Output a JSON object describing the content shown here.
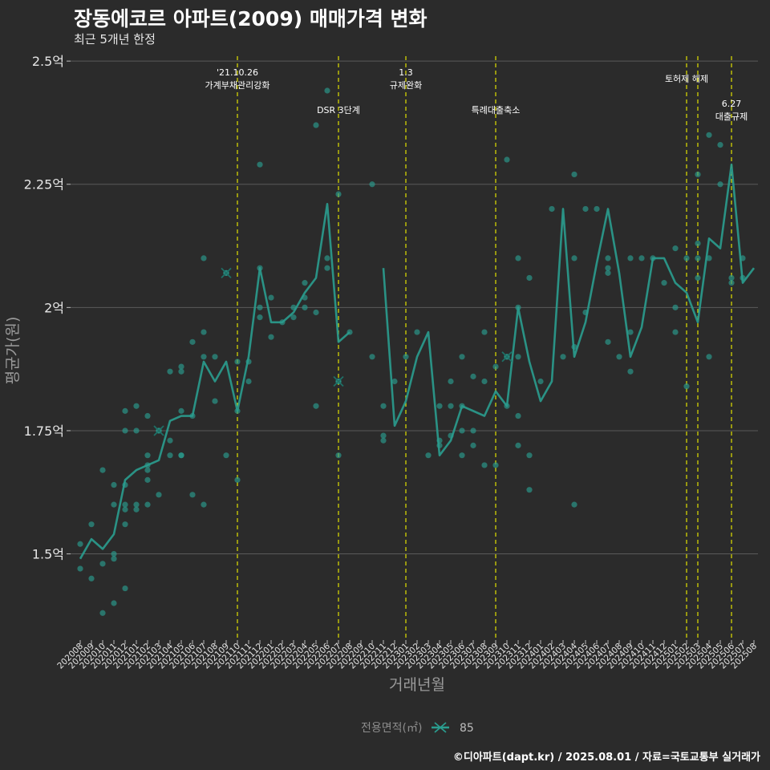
{
  "header": {
    "title": "장동에코르 아파트(2009) 매매가격 변화",
    "subtitle": "최근 5개년 한정"
  },
  "caption": "©디아파트(dapt.kr) / 2025.08.01 / 자료=국토교통부 실거래가",
  "colors": {
    "background": "#2b2b2b",
    "line": "#2a9d8f",
    "point": "#2a9d8f",
    "event_line": "#e0e000",
    "grid": "#5a5a5a"
  },
  "chart_data": {
    "type": "line",
    "xlabel": "거래년월",
    "ylabel": "평균가(원)",
    "ylim": [
      1.33,
      2.51
    ],
    "y_unit_suffix": "억",
    "y_ticks": [
      1.5,
      1.75,
      2,
      2.25,
      2.5
    ],
    "y_tick_labels": [
      "1.5억",
      "1.75억",
      "2억",
      "2.25억",
      "2.5억"
    ],
    "grid": true,
    "legend": {
      "title": "전용면적(㎡)",
      "placement": "bottom",
      "entries": [
        "85"
      ]
    },
    "x_tick_labels": [
      "202008",
      "202009",
      "202010",
      "202011",
      "202012",
      "202101",
      "202102",
      "202103",
      "202104",
      "202105",
      "202106",
      "202107",
      "202108",
      "202109",
      "202110",
      "202111",
      "202112",
      "202201",
      "202202",
      "202203",
      "202204",
      "202205",
      "202206",
      "202207",
      "202208",
      "202209",
      "202210",
      "202211",
      "202212",
      "202301",
      "202302",
      "202303",
      "202304",
      "202305",
      "202306",
      "202307",
      "202308",
      "202309",
      "202310",
      "202311",
      "202312",
      "202401",
      "202402",
      "202403",
      "202404",
      "202405",
      "202406",
      "202407",
      "202408",
      "202409",
      "202410",
      "202411",
      "202412",
      "202501",
      "202502",
      "202503",
      "202504",
      "202505",
      "202506",
      "202507",
      "202508"
    ],
    "series": [
      {
        "name": "85",
        "values": [
          1.49,
          1.53,
          1.51,
          1.54,
          1.65,
          1.67,
          1.68,
          1.69,
          1.77,
          1.78,
          1.78,
          1.89,
          1.85,
          1.89,
          1.79,
          1.9,
          2.08,
          1.97,
          1.97,
          1.99,
          2.03,
          2.06,
          2.21,
          1.93,
          1.95,
          null,
          null,
          2.08,
          1.76,
          1.81,
          1.9,
          1.95,
          1.7,
          1.73,
          1.8,
          1.79,
          1.78,
          1.83,
          1.8,
          2.0,
          1.89,
          1.81,
          1.85,
          2.2,
          1.9,
          1.97,
          2.09,
          2.2,
          2.07,
          1.9,
          1.96,
          2.1,
          2.1,
          2.05,
          2.03,
          1.97,
          2.14,
          2.12,
          2.29,
          2.05,
          2.08
        ]
      }
    ],
    "scatter": [
      [
        0,
        1.47
      ],
      [
        0,
        1.52
      ],
      [
        1,
        1.45
      ],
      [
        1,
        1.56
      ],
      [
        2,
        1.38
      ],
      [
        2,
        1.48
      ],
      [
        2,
        1.67
      ],
      [
        3,
        1.4
      ],
      [
        3,
        1.49
      ],
      [
        3,
        1.5
      ],
      [
        3,
        1.6
      ],
      [
        3,
        1.64
      ],
      [
        4,
        1.43
      ],
      [
        4,
        1.56
      ],
      [
        4,
        1.59
      ],
      [
        4,
        1.6
      ],
      [
        4,
        1.64
      ],
      [
        4,
        1.75
      ],
      [
        4,
        1.79
      ],
      [
        5,
        1.59
      ],
      [
        5,
        1.6
      ],
      [
        5,
        1.75
      ],
      [
        5,
        1.8
      ],
      [
        6,
        1.6
      ],
      [
        6,
        1.65
      ],
      [
        6,
        1.67
      ],
      [
        6,
        1.68
      ],
      [
        6,
        1.7
      ],
      [
        6,
        1.78
      ],
      [
        7,
        1.62
      ],
      [
        7,
        1.75
      ],
      [
        8,
        1.7
      ],
      [
        8,
        1.73
      ],
      [
        8,
        1.87
      ],
      [
        9,
        1.7
      ],
      [
        9,
        1.7
      ],
      [
        9,
        1.79
      ],
      [
        9,
        1.87
      ],
      [
        9,
        1.88
      ],
      [
        10,
        1.62
      ],
      [
        10,
        1.78
      ],
      [
        10,
        1.93
      ],
      [
        11,
        1.6
      ],
      [
        11,
        1.9
      ],
      [
        11,
        1.95
      ],
      [
        11,
        2.1
      ],
      [
        12,
        1.81
      ],
      [
        12,
        1.9
      ],
      [
        13,
        1.7
      ],
      [
        13,
        2.07
      ],
      [
        14,
        1.65
      ],
      [
        14,
        1.79
      ],
      [
        14,
        1.89
      ],
      [
        15,
        1.85
      ],
      [
        15,
        1.89
      ],
      [
        16,
        1.98
      ],
      [
        16,
        2.0
      ],
      [
        16,
        2.08
      ],
      [
        16,
        2.29
      ],
      [
        17,
        1.94
      ],
      [
        17,
        2.02
      ],
      [
        18,
        1.97
      ],
      [
        19,
        1.98
      ],
      [
        19,
        2.0
      ],
      [
        20,
        2.0
      ],
      [
        20,
        2.02
      ],
      [
        20,
        2.05
      ],
      [
        21,
        1.8
      ],
      [
        21,
        1.99
      ],
      [
        21,
        2.37
      ],
      [
        22,
        2.08
      ],
      [
        22,
        2.1
      ],
      [
        22,
        2.44
      ],
      [
        23,
        1.7
      ],
      [
        23,
        1.85
      ],
      [
        23,
        2.23
      ],
      [
        24,
        1.95
      ],
      [
        26,
        1.9
      ],
      [
        26,
        2.25
      ],
      [
        27,
        1.73
      ],
      [
        27,
        1.74
      ],
      [
        27,
        1.8
      ],
      [
        28,
        1.85
      ],
      [
        29,
        1.9
      ],
      [
        30,
        1.95
      ],
      [
        31,
        1.7
      ],
      [
        32,
        1.72
      ],
      [
        32,
        1.73
      ],
      [
        32,
        1.8
      ],
      [
        33,
        1.74
      ],
      [
        33,
        1.8
      ],
      [
        33,
        1.85
      ],
      [
        34,
        1.7
      ],
      [
        34,
        1.75
      ],
      [
        34,
        1.8
      ],
      [
        34,
        1.9
      ],
      [
        35,
        1.72
      ],
      [
        35,
        1.75
      ],
      [
        35,
        1.86
      ],
      [
        36,
        1.68
      ],
      [
        36,
        1.85
      ],
      [
        36,
        1.95
      ],
      [
        37,
        1.68
      ],
      [
        37,
        1.88
      ],
      [
        38,
        1.8
      ],
      [
        38,
        1.9
      ],
      [
        38,
        2.3
      ],
      [
        39,
        1.72
      ],
      [
        39,
        1.78
      ],
      [
        39,
        1.9
      ],
      [
        39,
        2.0
      ],
      [
        39,
        2.1
      ],
      [
        40,
        1.63
      ],
      [
        40,
        1.7
      ],
      [
        40,
        2.06
      ],
      [
        41,
        1.85
      ],
      [
        42,
        2.2
      ],
      [
        43,
        1.9
      ],
      [
        44,
        1.6
      ],
      [
        44,
        1.92
      ],
      [
        44,
        2.1
      ],
      [
        44,
        2.27
      ],
      [
        45,
        1.99
      ],
      [
        45,
        2.2
      ],
      [
        46,
        2.2
      ],
      [
        47,
        1.93
      ],
      [
        47,
        2.07
      ],
      [
        47,
        2.08
      ],
      [
        47,
        2.1
      ],
      [
        48,
        1.9
      ],
      [
        49,
        1.87
      ],
      [
        49,
        1.95
      ],
      [
        49,
        2.1
      ],
      [
        50,
        2.1
      ],
      [
        51,
        2.1
      ],
      [
        52,
        2.05
      ],
      [
        53,
        1.95
      ],
      [
        53,
        2.0
      ],
      [
        53,
        2.12
      ],
      [
        54,
        1.84
      ],
      [
        54,
        2.1
      ],
      [
        55,
        2.06
      ],
      [
        55,
        2.1
      ],
      [
        55,
        2.13
      ],
      [
        55,
        2.27
      ],
      [
        56,
        1.9
      ],
      [
        56,
        2.1
      ],
      [
        56,
        2.35
      ],
      [
        57,
        2.25
      ],
      [
        57,
        2.33
      ],
      [
        58,
        2.05
      ],
      [
        58,
        2.06
      ],
      [
        59,
        2.06
      ],
      [
        59,
        2.1
      ]
    ],
    "cancelled_marks": [
      [
        7,
        1.75
      ],
      [
        13,
        2.07
      ],
      [
        23,
        1.85
      ],
      [
        38,
        1.9
      ]
    ],
    "events": [
      {
        "x": 14.0,
        "label_top": "'21.10.26",
        "label_bottom": "가계부채관리강화",
        "row": 0
      },
      {
        "x": 23.0,
        "label_top": "",
        "label_bottom": "DSR 3단계",
        "row": 1
      },
      {
        "x": 29.0,
        "label_top": "1.3",
        "label_bottom": "규제완화",
        "row": 0
      },
      {
        "x": 37.0,
        "label_top": "",
        "label_bottom": "특례대출축소",
        "row": 1
      },
      {
        "x": 54.0,
        "label_top": "",
        "label_bottom": "토허제 해제",
        "row": 0
      },
      {
        "x": 55.0,
        "label_top": "",
        "label_bottom": "",
        "row": 0
      },
      {
        "x": 58.0,
        "label_top": "6.27",
        "label_bottom": "대출규제",
        "row": 1
      }
    ]
  }
}
